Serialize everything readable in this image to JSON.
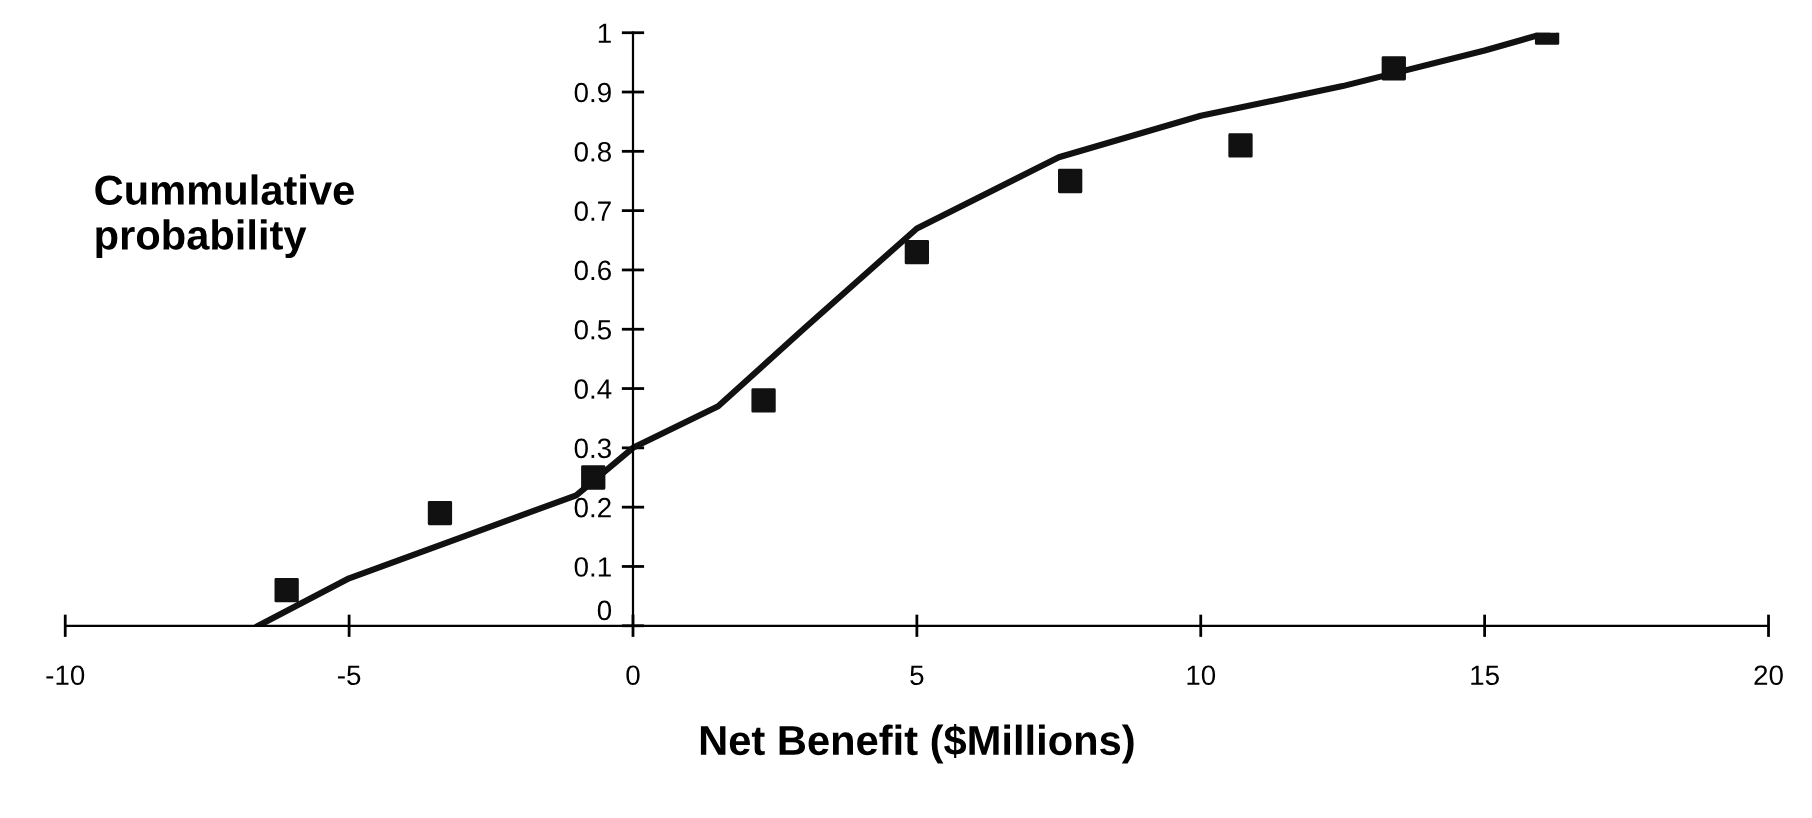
{
  "chart_data": {
    "type": "scatter",
    "xlabel": "Net Benefit ($Millions)",
    "ylabel": "Cummulative probability",
    "series": [
      {
        "color": "#111111",
        "marker": "square",
        "x": [
          -6.1,
          -3.4,
          -0.7,
          2.3,
          5.0,
          7.7,
          10.7,
          13.4,
          16.1
        ],
        "values": [
          0.06,
          0.19,
          0.25,
          0.38,
          0.63,
          0.75,
          0.81,
          0.94,
          1.0
        ]
      },
      {
        "type": "line",
        "color": "#111111",
        "marker": "none",
        "line_style": "solid",
        "x": [
          -6.6,
          -5,
          -3,
          -1,
          0,
          1.5,
          3,
          5,
          7.5,
          10,
          12.5,
          15,
          16.1
        ],
        "values": [
          0,
          0.08,
          0.15,
          0.22,
          0.3,
          0.37,
          0.5,
          0.67,
          0.79,
          0.86,
          0.91,
          0.97,
          1.0
        ]
      }
    ],
    "xlim": [
      -10,
      20
    ],
    "xticks": [
      -10,
      -5,
      0,
      5,
      10,
      15,
      20
    ],
    "ylim": [
      0,
      1
    ],
    "yticks": [
      0,
      0.1,
      0.2,
      0.3,
      0.4,
      0.5,
      0.6,
      0.7,
      0.8,
      0.9,
      1
    ],
    "grid": false
  }
}
